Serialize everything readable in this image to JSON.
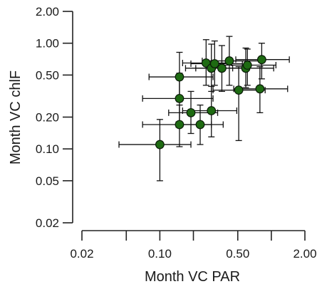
{
  "chart_data": {
    "type": "scatter",
    "title": "",
    "xlabel": "Month VC PAR",
    "ylabel": "Month VC chlF",
    "x_scale": "log",
    "y_scale": "log",
    "xlim": [
      0.02,
      2.0
    ],
    "ylim": [
      0.02,
      2.0
    ],
    "x_ticks": [
      0.02,
      0.05,
      0.1,
      0.2,
      0.5,
      1.0,
      2.0
    ],
    "x_tick_labels": [
      "0.02",
      "",
      "0.10",
      "",
      "0.50",
      "",
      "2.00"
    ],
    "y_ticks": [
      0.02,
      0.05,
      0.1,
      0.2,
      0.5,
      1.0,
      2.0
    ],
    "y_tick_labels": [
      "0.02",
      "0.05",
      "0.10",
      "0.20",
      "0.50",
      "1.00",
      "2.00"
    ],
    "grid": false,
    "marker_color": "#1e6b12",
    "points": [
      {
        "x": 0.1,
        "y": 0.11,
        "xerr": [
          0.043,
          0.19
        ],
        "yerr": [
          0.05,
          0.19
        ]
      },
      {
        "x": 0.15,
        "y": 0.17,
        "xerr": [
          0.07,
          0.29
        ],
        "yerr": [
          0.105,
          0.26
        ]
      },
      {
        "x": 0.15,
        "y": 0.3,
        "xerr": [
          0.07,
          0.3
        ],
        "yerr": [
          0.17,
          0.52
        ]
      },
      {
        "x": 0.15,
        "y": 0.48,
        "xerr": [
          0.08,
          0.3
        ],
        "yerr": [
          0.28,
          0.82
        ]
      },
      {
        "x": 0.19,
        "y": 0.22,
        "xerr": [
          0.12,
          0.33
        ],
        "yerr": [
          0.14,
          0.35
        ]
      },
      {
        "x": 0.23,
        "y": 0.17,
        "xerr": [
          0.14,
          0.37
        ],
        "yerr": [
          0.11,
          0.26
        ]
      },
      {
        "x": 0.26,
        "y": 0.65,
        "xerr": [
          0.16,
          0.44
        ],
        "yerr": [
          0.4,
          1.08
        ]
      },
      {
        "x": 0.29,
        "y": 0.23,
        "xerr": [
          0.16,
          0.49
        ],
        "yerr": [
          0.13,
          0.39
        ]
      },
      {
        "x": 0.29,
        "y": 0.58,
        "xerr": [
          0.17,
          0.45
        ],
        "yerr": [
          0.35,
          0.98
        ]
      },
      {
        "x": 0.31,
        "y": 0.64,
        "xerr": [
          0.19,
          0.55
        ],
        "yerr": [
          0.4,
          1.05
        ]
      },
      {
        "x": 0.36,
        "y": 0.58,
        "xerr": [
          0.21,
          0.62
        ],
        "yerr": [
          0.35,
          0.95
        ]
      },
      {
        "x": 0.42,
        "y": 0.68,
        "xerr": [
          0.24,
          0.8
        ],
        "yerr": [
          0.4,
          1.16
        ]
      },
      {
        "x": 0.51,
        "y": 0.36,
        "xerr": [
          0.3,
          0.88
        ],
        "yerr": [
          0.12,
          0.6
        ]
      },
      {
        "x": 0.59,
        "y": 0.58,
        "xerr": [
          0.34,
          1.05
        ],
        "yerr": [
          0.38,
          0.9
        ]
      },
      {
        "x": 0.61,
        "y": 0.62,
        "xerr": [
          0.36,
          1.1
        ],
        "yerr": [
          0.4,
          0.88
        ]
      },
      {
        "x": 0.79,
        "y": 0.37,
        "xerr": [
          0.46,
          1.4
        ],
        "yerr": [
          0.22,
          0.6
        ]
      },
      {
        "x": 0.82,
        "y": 0.7,
        "xerr": [
          0.48,
          1.45
        ],
        "yerr": [
          0.46,
          1.0
        ]
      }
    ]
  }
}
